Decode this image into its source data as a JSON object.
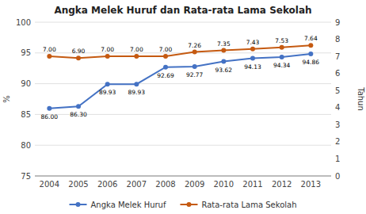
{
  "chart_data": {
    "type": "line",
    "title": "Angka Melek Huruf dan Rata-rata Lama Sekolah",
    "ylabel": "%",
    "y2label": "Tahun",
    "x": [
      2004,
      2005,
      2006,
      2007,
      2008,
      2009,
      2010,
      2011,
      2012,
      2013
    ],
    "xlim": [
      2003.5,
      2013.7
    ],
    "xticks": [
      2004,
      2005,
      2006,
      2007,
      2008,
      2009,
      2010,
      2011,
      2012,
      2013
    ],
    "ylim": [
      75,
      100
    ],
    "yticks": [
      75,
      80,
      85,
      90,
      95,
      100
    ],
    "y2lim": [
      0,
      9
    ],
    "y2ticks": [
      0,
      1,
      2,
      3,
      4,
      5,
      6,
      7,
      8,
      9
    ],
    "grid": true,
    "legend": "bottom",
    "data_labels": true,
    "series": [
      {
        "name": "Angka Melek Huruf",
        "color": "#4472C4",
        "marker": "circle",
        "line_style": "solid",
        "values": [
          86.0,
          86.3,
          89.93,
          89.93,
          92.69,
          92.77,
          93.62,
          94.13,
          94.34,
          94.86
        ],
        "value_labels": [
          "86.00",
          "86.30",
          "89.93",
          "89.93",
          "92.69",
          "92.77",
          "93.62",
          "94.13",
          "94.34",
          "94.86"
        ]
      },
      {
        "name": "Rata-rata Lama Sekolah",
        "color": "#C55A11",
        "marker": "circle",
        "line_style": "solid",
        "axis": "y2",
        "values": [
          7.0,
          6.9,
          7.0,
          7.0,
          7.0,
          7.26,
          7.35,
          7.43,
          7.53,
          7.64
        ],
        "value_labels": [
          "7.00",
          "6.90",
          "7.00",
          "7.00",
          "7.00",
          "7.26",
          "7.35",
          "7.43",
          "7.53",
          "7.64"
        ]
      }
    ]
  }
}
